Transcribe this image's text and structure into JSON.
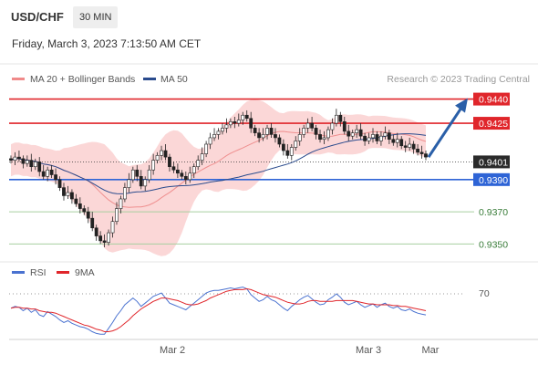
{
  "header": {
    "pair": "USD/CHF",
    "timeframe": "30 MIN",
    "timestamp": "Friday, March 3, 2023 7:13:50 AM CET"
  },
  "legend": {
    "bb": "MA 20 + Bollinger Bands",
    "ma50": "MA 50",
    "credit": "Research © 2023 Trading Central",
    "rsi": "RSI",
    "ma9": "9MA"
  },
  "colors": {
    "resistance": "#e0262b",
    "support": "#2e64d6",
    "target": "#5aa25a",
    "ma50": "#2a4b8d",
    "bands": "#f9c9c9",
    "arrow": "#2a5fa8",
    "rsi": "#4a72d0",
    "rsi_ma": "#e0262b"
  },
  "chart_data": {
    "type": "candlestick",
    "y_range": [
      9344,
      9446
    ],
    "levels": [
      {
        "label": "0.9440",
        "value": 0.944,
        "kind": "resistance"
      },
      {
        "label": "0.9425",
        "value": 0.9425,
        "kind": "resistance"
      },
      {
        "label": "0.9401",
        "value": 0.9401,
        "kind": "current"
      },
      {
        "label": "0.9390",
        "value": 0.939,
        "kind": "support"
      },
      {
        "label": "0.9370",
        "value": 0.937,
        "kind": "target"
      },
      {
        "label": "0.9350",
        "value": 0.935,
        "kind": "target"
      }
    ],
    "x_ticks": [
      "Mar 2",
      "Mar 3",
      "Mar"
    ],
    "rsi_level": "70",
    "candles_close": [
      9402,
      9404,
      9403,
      9400,
      9402,
      9398,
      9401,
      9395,
      9392,
      9396,
      9393,
      9390,
      9385,
      9380,
      9382,
      9378,
      9375,
      9372,
      9370,
      9366,
      9360,
      9355,
      9352,
      9351,
      9357,
      9364,
      9372,
      9378,
      9385,
      9390,
      9396,
      9392,
      9386,
      9390,
      9396,
      9402,
      9405,
      9408,
      9404,
      9398,
      9396,
      9394,
      9392,
      9390,
      9394,
      9398,
      9402,
      9406,
      9412,
      9416,
      9418,
      9420,
      9422,
      9424,
      9426,
      9425,
      9427,
      9430,
      9428,
      9422,
      9419,
      9416,
      9418,
      9422,
      9418,
      9416,
      9412,
      9408,
      9405,
      9410,
      9414,
      9418,
      9422,
      9425,
      9422,
      9418,
      9415,
      9416,
      9421,
      9425,
      9430,
      9426,
      9420,
      9417,
      9419,
      9421,
      9417,
      9414,
      9416,
      9418,
      9414,
      9417,
      9419,
      9415,
      9413,
      9415,
      9411,
      9410,
      9412,
      9409,
      9407,
      9406,
      9404
    ],
    "rsi": [
      50,
      52,
      51,
      47,
      50,
      45,
      48,
      42,
      40,
      46,
      43,
      40,
      36,
      33,
      35,
      32,
      30,
      28,
      27,
      25,
      22,
      20,
      19,
      19,
      26,
      33,
      41,
      47,
      54,
      58,
      62,
      58,
      52,
      56,
      60,
      64,
      66,
      68,
      62,
      56,
      54,
      52,
      50,
      48,
      52,
      56,
      60,
      64,
      68,
      70,
      71,
      71,
      72,
      73,
      74,
      73,
      74,
      75,
      73,
      66,
      62,
      58,
      60,
      64,
      60,
      58,
      54,
      50,
      47,
      52,
      56,
      60,
      63,
      65,
      61,
      57,
      54,
      55,
      60,
      63,
      67,
      63,
      57,
      54,
      56,
      58,
      54,
      51,
      53,
      55,
      51,
      54,
      56,
      52,
      50,
      52,
      48,
      47,
      49,
      46,
      44,
      43,
      42
    ],
    "rsi_ma": [
      50,
      51,
      51,
      50,
      50,
      49,
      49,
      47,
      46,
      45,
      45,
      44,
      42,
      40,
      38,
      36,
      34,
      32,
      30,
      29,
      27,
      25,
      24,
      22,
      22,
      23,
      25,
      28,
      32,
      36,
      41,
      45,
      49,
      52,
      55,
      58,
      60,
      62,
      62,
      61,
      60,
      59,
      57,
      55,
      54,
      54,
      55,
      57,
      59,
      62,
      64,
      66,
      68,
      70,
      71,
      72,
      72,
      72,
      73,
      72,
      70,
      68,
      66,
      65,
      64,
      63,
      61,
      59,
      57,
      56,
      55,
      55,
      56,
      58,
      59,
      59,
      58,
      58,
      58,
      58,
      59,
      59,
      59,
      59,
      59,
      58,
      57,
      56,
      55,
      55,
      54,
      54,
      54,
      54,
      53,
      53,
      52,
      52,
      51,
      50,
      49,
      48,
      47
    ]
  }
}
